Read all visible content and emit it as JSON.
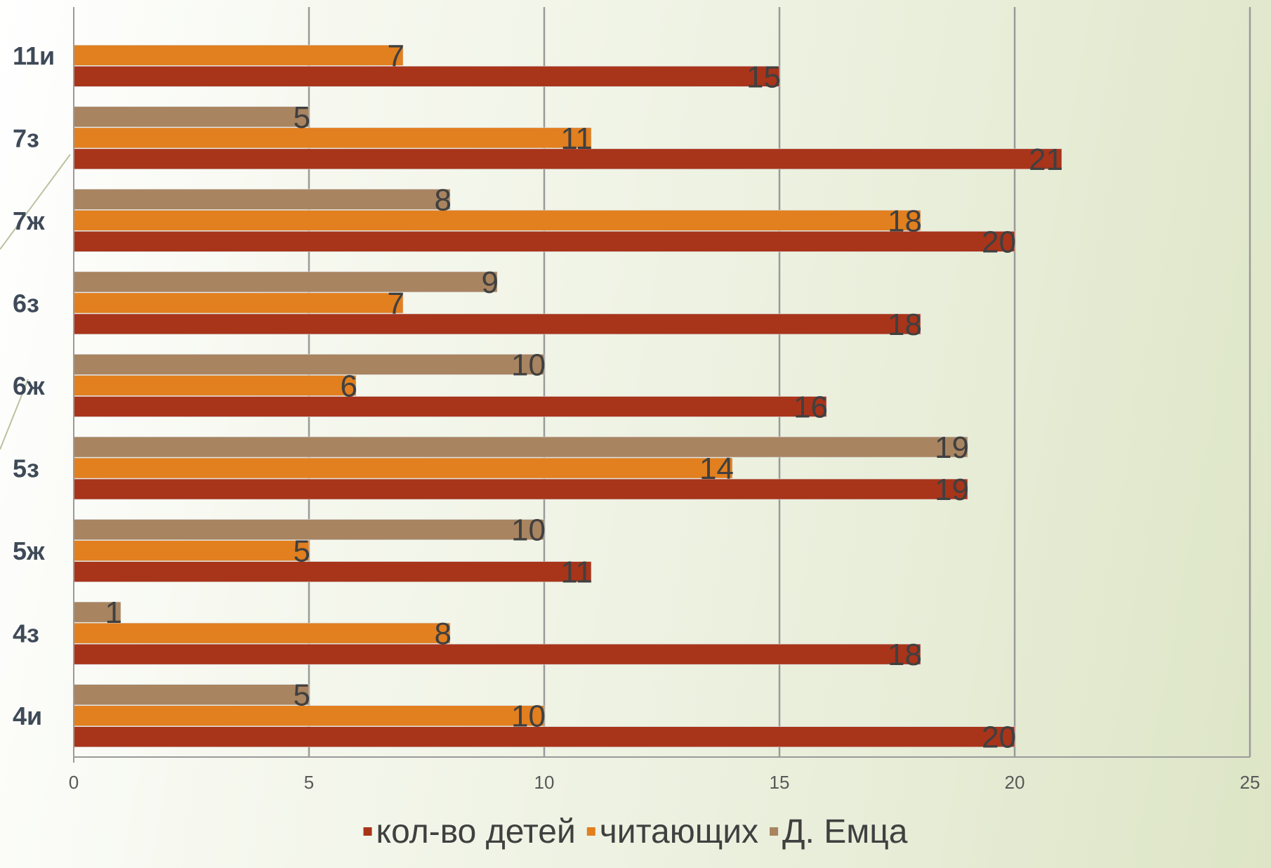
{
  "chart_data": {
    "type": "bar",
    "orientation": "horizontal",
    "categories": [
      "4и",
      "4з",
      "5ж",
      "5з",
      "6ж",
      "6з",
      "7ж",
      "7з",
      "11и"
    ],
    "series": [
      {
        "name": "кол-во детей",
        "color": "#a8341a",
        "values": [
          20,
          18,
          11,
          19,
          16,
          18,
          20,
          21,
          15
        ]
      },
      {
        "name": "читающих",
        "color": "#e27f1e",
        "values": [
          10,
          8,
          5,
          14,
          6,
          7,
          18,
          11,
          7
        ]
      },
      {
        "name": "Д. Емца",
        "color": "#a88460",
        "values": [
          5,
          1,
          10,
          19,
          10,
          9,
          8,
          5,
          null
        ]
      }
    ],
    "xlim": [
      0,
      25
    ],
    "x_ticks": [
      "0",
      "5",
      "10",
      "15",
      "20",
      "25"
    ],
    "grid": true,
    "data_labels": true,
    "legend_position": "bottom"
  }
}
